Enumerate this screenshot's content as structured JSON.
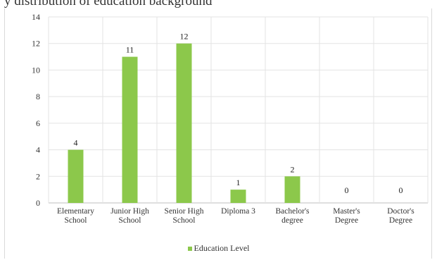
{
  "fragment_text": "y distribution of education background",
  "chart_data": {
    "type": "bar",
    "categories": [
      [
        "Elementary",
        "School"
      ],
      [
        "Junior High",
        "School"
      ],
      [
        "Senior High",
        "School"
      ],
      [
        "Diploma 3"
      ],
      [
        "Bachelor's",
        "degree"
      ],
      [
        "Master's",
        "Degree"
      ],
      [
        "Doctor's",
        "Degree"
      ]
    ],
    "series": [
      {
        "name": "Education Level",
        "values": [
          4,
          11,
          12,
          1,
          2,
          0,
          0
        ],
        "color": "#8cc84b"
      }
    ],
    "ylim": [
      0,
      14
    ],
    "yticks": [
      0,
      2,
      4,
      6,
      8,
      10,
      12,
      14
    ],
    "grid": true,
    "data_labels": true,
    "legend_position": "bottom"
  }
}
